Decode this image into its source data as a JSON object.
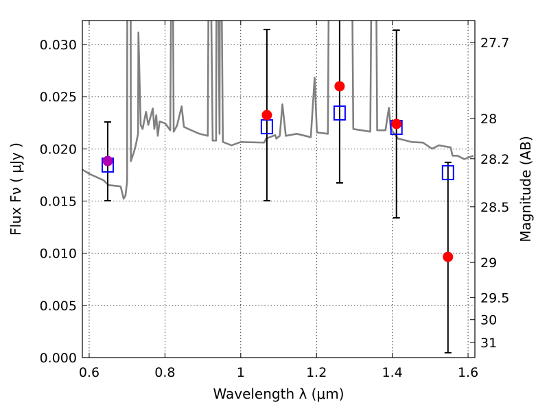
{
  "chart_data": {
    "type": "scatter",
    "xlabel": "Wavelength  λ (μm)",
    "ylabel": "Flux  Fν  ( μJy )",
    "ylabel_right": "Magnitude (AB)",
    "xlim": [
      0.582,
      1.618
    ],
    "ylim": [
      0,
      0.0323
    ],
    "grid": true,
    "x_ticks": [
      0.6,
      0.8,
      1.0,
      1.2,
      1.4,
      1.6
    ],
    "x_tick_labels": [
      "0.6",
      "0.8",
      "1",
      "1.2",
      "1.4",
      "1.6"
    ],
    "y_ticks": [
      0,
      0.005,
      0.01,
      0.015,
      0.02,
      0.025,
      0.03
    ],
    "y_tick_labels": [
      "0.000",
      "0.005",
      "0.010",
      "0.015",
      "0.020",
      "0.025",
      "0.030"
    ],
    "right_ticks_mag": [
      27.7,
      28,
      28.2,
      28.5,
      29,
      29.5,
      30,
      31
    ],
    "right_tick_labels": [
      "27.7",
      "28",
      "28.2",
      "28.5",
      "29",
      "29.5",
      "30",
      "31"
    ],
    "mag_zeropoint": 23.9,
    "colors": {
      "spectrum": "#808080",
      "observed": "#ff0000",
      "overlap": "#b000b0",
      "model": "#0000ff",
      "error": "#000000"
    },
    "points": [
      {
        "x": 0.649,
        "observed": 0.01884,
        "model": 0.01845,
        "err_low": 0.01503,
        "err_high": 0.02258,
        "overlap": true
      },
      {
        "x": 1.069,
        "observed": 0.02324,
        "model": 0.02212,
        "err_low": 0.01503,
        "err_high": 0.03144
      },
      {
        "x": 1.261,
        "observed": 0.026,
        "model": 0.02344,
        "err_low": 0.01674,
        "err_high": 0.04
      },
      {
        "x": 1.411,
        "observed": 0.02239,
        "model": 0.02206,
        "err_low": 0.01339,
        "err_high": 0.03138
      },
      {
        "x": 1.547,
        "observed": 0.00965,
        "model": 0.01772,
        "err_low": 0.00046,
        "err_high": 0.01871
      }
    ],
    "spectrum": [
      [
        0.578,
        0.0181
      ],
      [
        0.602,
        0.01758
      ],
      [
        0.638,
        0.01699
      ],
      [
        0.651,
        0.01653
      ],
      [
        0.683,
        0.0164
      ],
      [
        0.691,
        0.01522
      ],
      [
        0.696,
        0.01555
      ],
      [
        0.7,
        0.01686
      ],
      [
        0.701,
        0.05
      ],
      [
        0.709,
        0.05
      ],
      [
        0.71,
        0.01883
      ],
      [
        0.718,
        0.01968
      ],
      [
        0.723,
        0.02034
      ],
      [
        0.729,
        0.02145
      ],
      [
        0.73,
        0.03116
      ],
      [
        0.736,
        0.0223
      ],
      [
        0.741,
        0.02191
      ],
      [
        0.75,
        0.02355
      ],
      [
        0.756,
        0.0223
      ],
      [
        0.768,
        0.02388
      ],
      [
        0.772,
        0.02191
      ],
      [
        0.777,
        0.02322
      ],
      [
        0.781,
        0.02125
      ],
      [
        0.786,
        0.02263
      ],
      [
        0.801,
        0.02244
      ],
      [
        0.814,
        0.02178
      ],
      [
        0.819,
        0.05
      ],
      [
        0.823,
        0.02165
      ],
      [
        0.832,
        0.02224
      ],
      [
        0.844,
        0.02408
      ],
      [
        0.85,
        0.02211
      ],
      [
        0.862,
        0.02191
      ],
      [
        0.891,
        0.02145
      ],
      [
        0.913,
        0.02125
      ],
      [
        0.917,
        0.05
      ],
      [
        0.926,
        0.0208
      ],
      [
        0.935,
        0.0208
      ],
      [
        0.937,
        0.05
      ],
      [
        0.944,
        0.02145
      ],
      [
        0.946,
        0.05
      ],
      [
        0.953,
        0.02066
      ],
      [
        0.976,
        0.02034
      ],
      [
        1.0,
        0.02066
      ],
      [
        1.062,
        0.0206
      ],
      [
        1.067,
        0.02099
      ],
      [
        1.091,
        0.02132
      ],
      [
        1.094,
        0.02099
      ],
      [
        1.103,
        0.02125
      ],
      [
        1.11,
        0.02427
      ],
      [
        1.119,
        0.02125
      ],
      [
        1.148,
        0.02145
      ],
      [
        1.185,
        0.02112
      ],
      [
        1.195,
        0.02683
      ],
      [
        1.201,
        0.02158
      ],
      [
        1.23,
        0.02145
      ],
      [
        1.235,
        0.05
      ],
      [
        1.291,
        0.05
      ],
      [
        1.297,
        0.02191
      ],
      [
        1.342,
        0.02165
      ],
      [
        1.348,
        0.05
      ],
      [
        1.355,
        0.05
      ],
      [
        1.36,
        0.02178
      ],
      [
        1.382,
        0.02178
      ],
      [
        1.391,
        0.02394
      ],
      [
        1.396,
        0.02191
      ],
      [
        1.415,
        0.02099
      ],
      [
        1.451,
        0.02066
      ],
      [
        1.481,
        0.0206
      ],
      [
        1.505,
        0.02001
      ],
      [
        1.523,
        0.02034
      ],
      [
        1.554,
        0.02014
      ],
      [
        1.559,
        0.01935
      ],
      [
        1.572,
        0.01935
      ],
      [
        1.59,
        0.01902
      ],
      [
        1.614,
        0.01935
      ]
    ]
  }
}
